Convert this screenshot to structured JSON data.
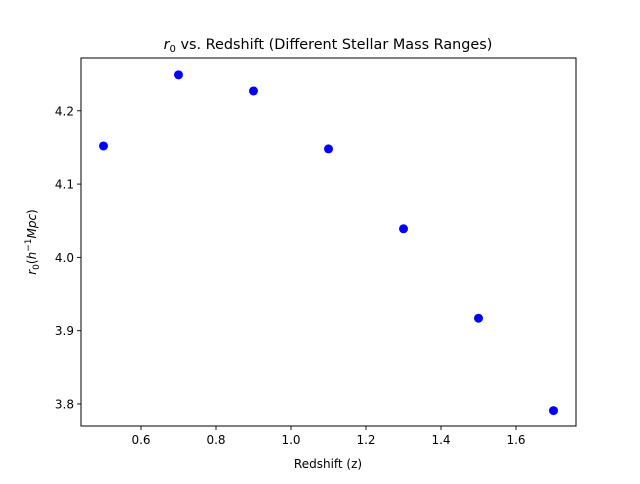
{
  "chart_data": {
    "type": "scatter",
    "title": "r₀ vs. Redshift (Different Stellar Mass Ranges)",
    "title_parts": {
      "symbol": "r",
      "subscript": "0",
      "rest": " vs. Redshift (Different Stellar Mass Ranges)"
    },
    "xlabel": "Redshift (z)",
    "ylabel": "r₀(h⁻¹Mpc)",
    "ylabel_parts": {
      "symbol": "r",
      "subscript": "0",
      "open": "(",
      "h": "h",
      "exponent": "−1",
      "unit": "Mpc",
      "close": ")"
    },
    "xlim": [
      0.44,
      1.76
    ],
    "ylim": [
      3.77,
      4.272
    ],
    "xticks": [
      0.6,
      0.8,
      1.0,
      1.2,
      1.4,
      1.6
    ],
    "xtick_labels": [
      "0.6",
      "0.8",
      "1.0",
      "1.2",
      "1.4",
      "1.6"
    ],
    "yticks": [
      3.8,
      3.9,
      4.0,
      4.1,
      4.2
    ],
    "ytick_labels": [
      "3.8",
      "3.9",
      "4.0",
      "4.1",
      "4.2"
    ],
    "grid": false,
    "legend": "none",
    "series": [
      {
        "color": "#0000ff",
        "marker": "circle",
        "x": [
          0.5,
          0.7,
          0.9,
          1.1,
          1.3,
          1.5,
          1.7
        ],
        "y": [
          4.152,
          4.249,
          4.227,
          4.148,
          4.039,
          3.917,
          3.791
        ]
      }
    ]
  }
}
